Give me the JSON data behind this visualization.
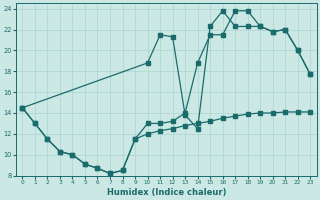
{
  "xlabel": "Humidex (Indice chaleur)",
  "bg_color": "#cce8e5",
  "grid_color": "#aad4d0",
  "line_color": "#1a6b6b",
  "xlim": [
    -0.5,
    23.5
  ],
  "ylim": [
    8,
    24.5
  ],
  "xticks": [
    0,
    1,
    2,
    3,
    4,
    5,
    6,
    7,
    8,
    9,
    10,
    11,
    12,
    13,
    14,
    15,
    16,
    17,
    18,
    19,
    20,
    21,
    22,
    23
  ],
  "yticks": [
    8,
    10,
    12,
    14,
    16,
    18,
    20,
    22,
    24
  ],
  "line1_x": [
    0,
    1,
    2,
    3,
    4,
    5,
    6,
    7,
    8,
    9,
    10,
    11,
    12,
    13,
    14,
    15,
    16,
    17,
    18,
    19,
    20,
    21,
    22,
    23
  ],
  "line1_y": [
    14.5,
    13,
    11.5,
    10.3,
    10.0,
    9.1,
    8.7,
    8.2,
    8.5,
    11.5,
    13.0,
    13.0,
    13.2,
    14.0,
    18.8,
    21.5,
    21.5,
    23.8,
    23.8,
    22.3,
    21.8,
    22.0,
    20.0,
    17.7
  ],
  "line2_x": [
    0,
    10,
    11,
    12,
    13,
    14,
    15,
    16,
    17,
    18,
    19,
    20,
    21,
    22,
    23
  ],
  "line2_y": [
    14.5,
    18.8,
    21.5,
    21.3,
    13.8,
    12.5,
    22.3,
    23.8,
    22.3,
    22.3,
    22.3,
    21.8,
    22.0,
    20.0,
    17.7
  ],
  "line3_x": [
    0,
    1,
    2,
    3,
    4,
    5,
    6,
    7,
    8,
    9,
    10,
    11,
    12,
    13,
    14,
    15,
    16,
    17,
    18,
    19,
    20,
    21,
    22,
    23
  ],
  "line3_y": [
    14.5,
    13.0,
    11.5,
    10.3,
    10.0,
    9.1,
    8.7,
    8.2,
    8.5,
    11.5,
    12.0,
    12.3,
    12.5,
    12.8,
    13.0,
    13.2,
    13.5,
    13.7,
    13.9,
    14.0,
    14.0,
    14.1,
    14.1,
    14.1
  ]
}
